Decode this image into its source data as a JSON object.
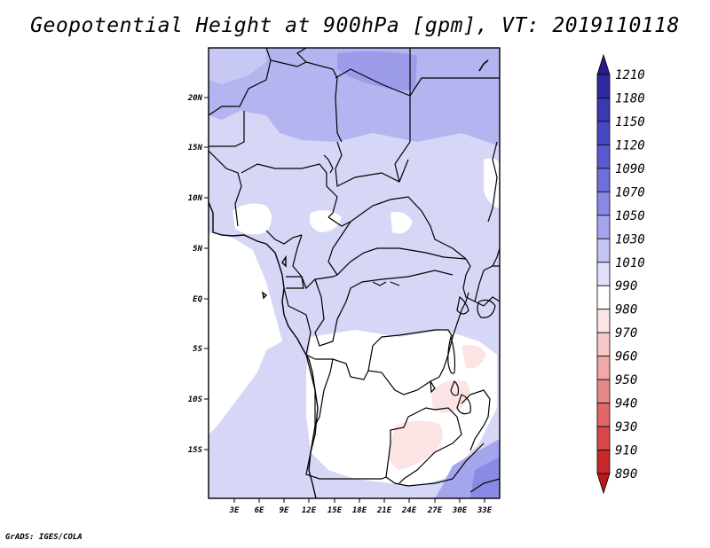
{
  "title": "Geopotential Height at 900hPa [gpm], VT: 2019110118",
  "credit": "GrADS: IGES/COLA",
  "map": {
    "lat_labels": [
      "20N",
      "15N",
      "10N",
      "5N",
      "EQ",
      "5S",
      "10S",
      "15S"
    ],
    "lon_labels": [
      "3E",
      "6E",
      "9E",
      "12E",
      "15E",
      "18E",
      "21E",
      "24E",
      "27E",
      "30E",
      "33E"
    ]
  },
  "colorbar": {
    "labels": [
      "1210",
      "1180",
      "1150",
      "1120",
      "1090",
      "1070",
      "1050",
      "1030",
      "1010",
      "990",
      "980",
      "970",
      "960",
      "950",
      "940",
      "930",
      "910",
      "890"
    ],
    "colors": [
      "#2a1a8c",
      "#2f2a9f",
      "#3a3ab0",
      "#4848c0",
      "#5a5ad0",
      "#6f6fdc",
      "#8a8ae6",
      "#a5a5ee",
      "#c5c5f5",
      "#e0e0fa",
      "#ffffff",
      "#fde4e4",
      "#f8c8c8",
      "#f0a8a8",
      "#e88888",
      "#e06868",
      "#d84848",
      "#c82828",
      "#b81a1a"
    ]
  }
}
